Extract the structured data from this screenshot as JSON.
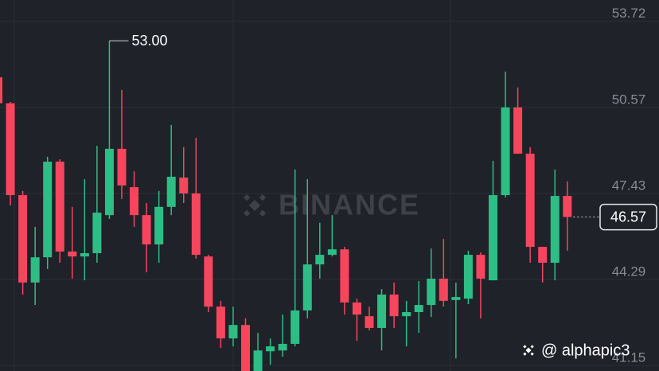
{
  "chart_data": {
    "type": "candlestick",
    "watermark": "BINANCE",
    "credit": "@ alphapic3",
    "up_color": "#2ebd85",
    "down_color": "#f6465d",
    "grid": true,
    "ylim": [
      40.95,
      54.49
    ],
    "yticks": [
      53.72,
      50.57,
      47.43,
      44.29,
      41.15
    ],
    "annotation": {
      "text": "53.00",
      "value": 53.0
    },
    "current_price": 46.57,
    "open": [
      51.67,
      50.72,
      47.37,
      44.18,
      45.1,
      48.59,
      45.31,
      45.13,
      45.25,
      46.64,
      49.06,
      47.66,
      46.64,
      45.57,
      46.94,
      48.01,
      47.43,
      45.13,
      43.3,
      42.14,
      42.63,
      40.95,
      41.67,
      41.7,
      41.94,
      43.16,
      44.84,
      45.19,
      45.39,
      43.45,
      42.95,
      42.52,
      43.74,
      42.95,
      43.1,
      43.36,
      44.32,
      43.54,
      43.59,
      45.19,
      44.26,
      47.37,
      50.57,
      48.88,
      45.48,
      44.9,
      47.34
    ],
    "high": [
      51.67,
      50.77,
      47.52,
      46.21,
      48.77,
      48.68,
      46.94,
      47.95,
      49.17,
      53.0,
      51.21,
      48.24,
      47.08,
      47.52,
      49.93,
      49.12,
      49.46,
      45.19,
      43.51,
      43.3,
      42.87,
      42.34,
      42.14,
      43.01,
      48.3,
      47.95,
      46.36,
      46.64,
      45.48,
      43.59,
      43.3,
      43.94,
      44.18,
      43.51,
      44.23,
      45.42,
      45.77,
      44.18,
      45.34,
      45.28,
      48.62,
      51.88,
      51.3,
      49.12,
      45.48,
      48.3,
      47.87
    ],
    "low": [
      50.72,
      46.99,
      43.74,
      43.36,
      44.67,
      44.9,
      44.32,
      44.26,
      44.9,
      46.5,
      47.23,
      46.21,
      44.55,
      44.9,
      46.64,
      47.08,
      45.05,
      43.1,
      41.79,
      41.85,
      40.95,
      40.95,
      41.18,
      41.47,
      41.85,
      42.87,
      44.32,
      45.13,
      43.01,
      42.05,
      42.43,
      41.7,
      42.52,
      41.85,
      42.34,
      42.92,
      43.3,
      41.41,
      43.39,
      42.87,
      44.26,
      47.28,
      48.88,
      44.9,
      44.18,
      44.26,
      45.34
    ],
    "close": [
      50.72,
      47.37,
      44.18,
      45.1,
      48.59,
      45.31,
      45.13,
      45.25,
      46.73,
      49.06,
      47.72,
      46.64,
      45.57,
      46.94,
      48.04,
      47.43,
      45.19,
      43.3,
      42.14,
      42.63,
      40.95,
      41.7,
      41.85,
      41.94,
      43.16,
      44.84,
      45.19,
      45.39,
      43.45,
      43.01,
      42.52,
      43.74,
      42.95,
      43.1,
      43.36,
      44.32,
      43.51,
      43.65,
      45.19,
      44.32,
      47.37,
      50.57,
      48.88,
      45.48,
      44.9,
      47.34,
      46.57
    ]
  }
}
